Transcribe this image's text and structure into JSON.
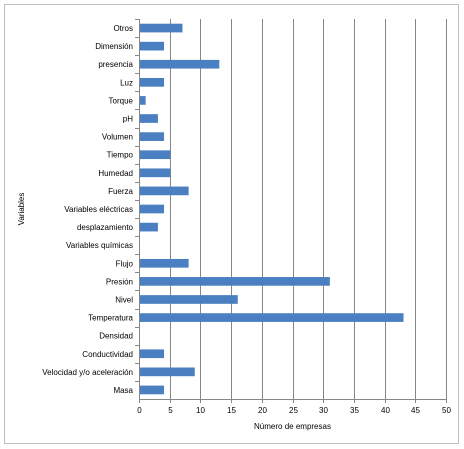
{
  "chart_data": {
    "type": "bar",
    "orientation": "horizontal",
    "title": "",
    "xlabel": "Número de empresas",
    "ylabel": "Variables",
    "xlim": [
      0,
      50
    ],
    "xticks": [
      0,
      5,
      10,
      15,
      20,
      25,
      30,
      35,
      40,
      45,
      50
    ],
    "grid": "vertical",
    "legend": "none",
    "bar_color": "#4a7fc1",
    "categories": [
      "Otros",
      "Dimensión",
      "presencia",
      "Luz",
      "Torque",
      "pH",
      "Volumen",
      "Tiempo",
      "Humedad",
      "Fuerza",
      "Variables eléctricas",
      "desplazamiento",
      "Variables químicas",
      "Flujo",
      "Presión",
      "Nivel",
      "Temperatura",
      "Densidad",
      "Conductividad",
      "Velocidad y/o aceleración",
      "Masa"
    ],
    "values": [
      7,
      4,
      13,
      4,
      1,
      3,
      4,
      5,
      5,
      8,
      4,
      3,
      0,
      8,
      31,
      16,
      43,
      0,
      4,
      9,
      4
    ]
  }
}
